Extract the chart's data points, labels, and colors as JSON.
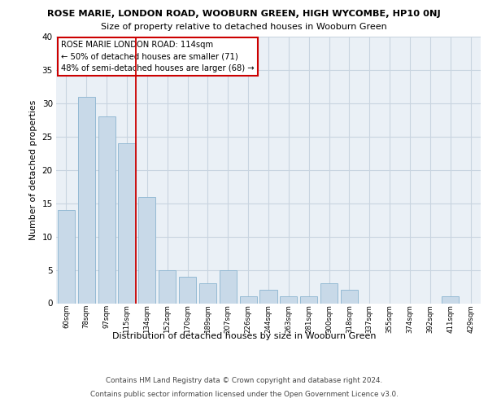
{
  "title_line1": "ROSE MARIE, LONDON ROAD, WOOBURN GREEN, HIGH WYCOMBE, HP10 0NJ",
  "title_line2": "Size of property relative to detached houses in Wooburn Green",
  "xlabel": "Distribution of detached houses by size in Wooburn Green",
  "ylabel": "Number of detached properties",
  "categories": [
    "60sqm",
    "78sqm",
    "97sqm",
    "115sqm",
    "134sqm",
    "152sqm",
    "170sqm",
    "189sqm",
    "207sqm",
    "226sqm",
    "244sqm",
    "263sqm",
    "281sqm",
    "300sqm",
    "318sqm",
    "337sqm",
    "355sqm",
    "374sqm",
    "392sqm",
    "411sqm",
    "429sqm"
  ],
  "values": [
    14,
    31,
    28,
    24,
    16,
    5,
    4,
    3,
    5,
    1,
    2,
    1,
    1,
    3,
    2,
    0,
    0,
    0,
    0,
    1,
    0
  ],
  "bar_color": "#c8d9e8",
  "bar_edge_color": "#8ab4d0",
  "vline_index": 3,
  "vline_color": "#cc0000",
  "annotation_text": "ROSE MARIE LONDON ROAD: 114sqm\n← 50% of detached houses are smaller (71)\n48% of semi-detached houses are larger (68) →",
  "annotation_box_color": "white",
  "annotation_box_edge_color": "#cc0000",
  "ylim": [
    0,
    40
  ],
  "yticks": [
    0,
    5,
    10,
    15,
    20,
    25,
    30,
    35,
    40
  ],
  "grid_color": "#c8d4e0",
  "background_color": "#eaf0f6",
  "footer_line1": "Contains HM Land Registry data © Crown copyright and database right 2024.",
  "footer_line2": "Contains public sector information licensed under the Open Government Licence v3.0."
}
